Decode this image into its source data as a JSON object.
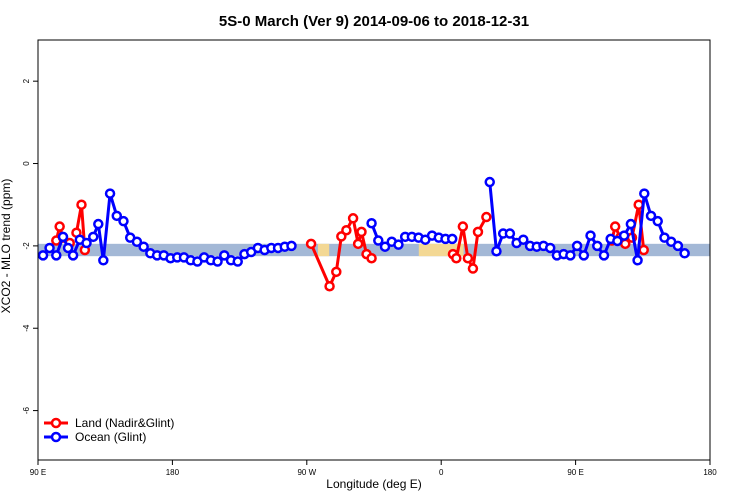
{
  "chart_data": {
    "type": "line",
    "title": "5S-0 March (Ver 9)   2014-09-06 to 2018-12-31",
    "xlabel": "Longitude (deg E)",
    "ylabel": "XCO2 - MLO trend (ppm)",
    "xlim": [
      90,
      450
    ],
    "ylim": [
      -7.2,
      3.0
    ],
    "x_ticks": [
      {
        "value": 90,
        "label": "90 E"
      },
      {
        "value": 162,
        "label": "180"
      },
      {
        "value": 234,
        "label": "90 W"
      },
      {
        "value": 306,
        "label": "0"
      },
      {
        "value": 378,
        "label": "90 E"
      },
      {
        "value": 450,
        "label": "180"
      }
    ],
    "y_ticks": [
      {
        "value": 2,
        "label": "2"
      },
      {
        "value": 0,
        "label": "0"
      },
      {
        "value": -2,
        "label": "-2"
      },
      {
        "value": -4,
        "label": "-4"
      },
      {
        "value": -6,
        "label": "-6"
      }
    ],
    "bands": [
      {
        "y0": -2.25,
        "y1": -1.95,
        "x0": 90,
        "x1": 450,
        "color": "#a3b8d6"
      },
      {
        "y0": -2.25,
        "y1": -1.95,
        "x0": 240,
        "x1": 246,
        "color": "#f3d894"
      },
      {
        "y0": -2.25,
        "y1": -1.95,
        "x0": 294,
        "x1": 318,
        "color": "#f3d894"
      }
    ],
    "series": [
      {
        "name": "Land (Nadir&Glint)",
        "color": "#ff0000",
        "segments": [
          [
            [
              99.8,
              -1.87
            ],
            [
              101.6,
              -1.53
            ],
            [
              103.4,
              -1.8
            ],
            [
              107.0,
              -1.93
            ]
          ],
          [
            [
              110.6,
              -1.68
            ],
            [
              113.3,
              -1.0
            ],
            [
              115.1,
              -2.1
            ]
          ],
          [
            [
              236.3,
              -1.95
            ],
            [
              246.2,
              -2.98
            ],
            [
              249.8,
              -2.63
            ],
            [
              252.5,
              -1.77
            ],
            [
              255.2,
              -1.62
            ],
            [
              258.8,
              -1.33
            ],
            [
              261.5,
              -1.95
            ],
            [
              263.3,
              -1.66
            ],
            [
              266.0,
              -2.2
            ],
            [
              268.7,
              -2.3
            ]
          ],
          [
            [
              312.3,
              -2.2
            ],
            [
              314.1,
              -2.3
            ],
            [
              317.6,
              -1.53
            ],
            [
              320.3,
              -2.3
            ],
            [
              323.0,
              -2.55
            ],
            [
              325.7,
              -1.66
            ],
            [
              330.2,
              -1.3
            ]
          ],
          [
            [
              397.4,
              -1.87
            ],
            [
              399.2,
              -1.53
            ],
            [
              401.9,
              -1.8
            ],
            [
              404.6,
              -1.95
            ]
          ],
          [
            [
              408.2,
              -1.8
            ],
            [
              411.8,
              -1.0
            ],
            [
              414.5,
              -2.1
            ]
          ]
        ]
      },
      {
        "name": "Ocean (Glint)",
        "color": "#0000ff",
        "segments": [
          [
            [
              92.7,
              -2.23
            ],
            [
              96.2,
              -2.05
            ],
            [
              99.8,
              -2.23
            ],
            [
              103.4,
              -1.78
            ],
            [
              106.1,
              -2.05
            ],
            [
              108.8,
              -2.23
            ],
            [
              112.4,
              -1.85
            ],
            [
              116.0,
              -1.93
            ],
            [
              119.6,
              -1.78
            ],
            [
              122.3,
              -1.47
            ],
            [
              125.0,
              -2.35
            ],
            [
              128.6,
              -0.73
            ],
            [
              132.2,
              -1.27
            ],
            [
              135.8,
              -1.4
            ],
            [
              139.4,
              -1.8
            ],
            [
              143.0,
              -1.9
            ],
            [
              146.6,
              -2.02
            ],
            [
              150.2,
              -2.18
            ],
            [
              153.8,
              -2.23
            ],
            [
              157.4,
              -2.23
            ],
            [
              161.0,
              -2.3
            ],
            [
              164.6,
              -2.28
            ],
            [
              168.2,
              -2.28
            ],
            [
              171.8,
              -2.35
            ],
            [
              175.4,
              -2.38
            ],
            [
              179.0,
              -2.28
            ],
            [
              182.6,
              -2.35
            ],
            [
              186.2,
              -2.38
            ],
            [
              189.8,
              -2.23
            ],
            [
              193.4,
              -2.35
            ],
            [
              197.0,
              -2.38
            ],
            [
              200.6,
              -2.2
            ],
            [
              204.2,
              -2.15
            ],
            [
              207.8,
              -2.05
            ],
            [
              211.4,
              -2.1
            ],
            [
              215.0,
              -2.05
            ],
            [
              218.6,
              -2.05
            ],
            [
              222.2,
              -2.02
            ],
            [
              225.8,
              -2.0
            ]
          ],
          [
            [
              268.7,
              -1.45
            ],
            [
              272.3,
              -1.87
            ],
            [
              275.9,
              -2.02
            ],
            [
              279.5,
              -1.9
            ],
            [
              283.1,
              -1.97
            ],
            [
              286.7,
              -1.78
            ],
            [
              290.3,
              -1.78
            ],
            [
              293.9,
              -1.8
            ],
            [
              297.5,
              -1.85
            ],
            [
              301.1,
              -1.75
            ],
            [
              304.7,
              -1.8
            ],
            [
              308.3,
              -1.83
            ],
            [
              311.9,
              -1.83
            ]
          ],
          [
            [
              332.0,
              -0.45
            ],
            [
              335.6,
              -2.13
            ],
            [
              339.2,
              -1.7
            ],
            [
              342.8,
              -1.7
            ],
            [
              346.4,
              -1.93
            ],
            [
              350.0,
              -1.85
            ],
            [
              353.6,
              -2.0
            ],
            [
              357.2,
              -2.02
            ],
            [
              360.8,
              -2.0
            ],
            [
              364.4,
              -2.05
            ],
            [
              368.0,
              -2.23
            ],
            [
              371.6,
              -2.2
            ],
            [
              375.2,
              -2.23
            ],
            [
              378.8,
              -2.0
            ],
            [
              382.4,
              -2.23
            ],
            [
              386.0,
              -1.75
            ],
            [
              389.6,
              -2.0
            ],
            [
              393.2,
              -2.23
            ],
            [
              396.8,
              -1.83
            ],
            [
              400.4,
              -1.88
            ],
            [
              404.0,
              -1.75
            ],
            [
              407.6,
              -1.47
            ],
            [
              411.2,
              -2.35
            ],
            [
              414.8,
              -0.73
            ],
            [
              418.4,
              -1.27
            ],
            [
              422.0,
              -1.4
            ],
            [
              425.6,
              -1.8
            ],
            [
              429.2,
              -1.9
            ],
            [
              432.8,
              -2.0
            ],
            [
              436.4,
              -2.18
            ]
          ]
        ]
      }
    ],
    "legend": {
      "position": "bottom-left"
    },
    "grid": false
  }
}
